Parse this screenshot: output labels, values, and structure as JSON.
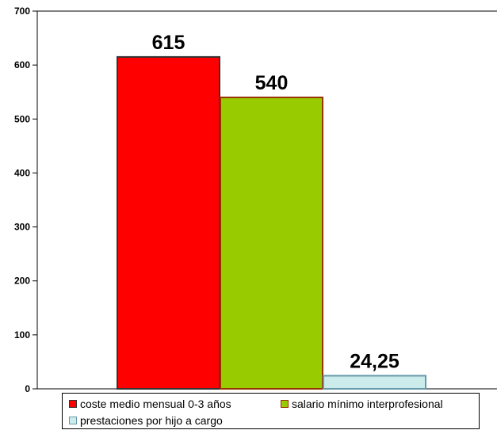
{
  "chart_data": {
    "type": "bar",
    "title": "",
    "xlabel": "",
    "ylabel": "",
    "ylim": [
      0,
      700
    ],
    "yticks": [
      "0",
      "100",
      "200",
      "300",
      "400",
      "500",
      "600",
      "700"
    ],
    "grid": false,
    "legend_position": "bottom",
    "series": [
      {
        "name": "coste medio mensual 0-3 años",
        "value": 615,
        "label": "615",
        "color": "#ff0000",
        "border": "#333333"
      },
      {
        "name": "salario mínimo interprofesional",
        "value": 540,
        "label": "540",
        "color": "#99cc00",
        "border": "#993300"
      },
      {
        "name": "prestaciones por hijo a cargo",
        "value": 24.25,
        "label": "24,25",
        "color": "#ccecec",
        "border": "#6699aa"
      }
    ]
  }
}
